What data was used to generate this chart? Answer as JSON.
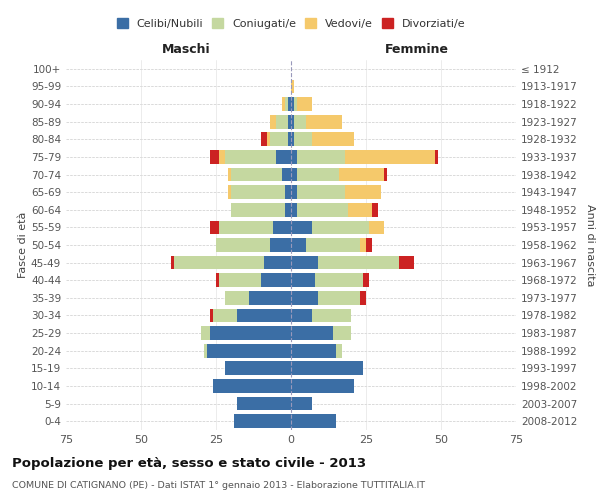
{
  "age_groups": [
    "0-4",
    "5-9",
    "10-14",
    "15-19",
    "20-24",
    "25-29",
    "30-34",
    "35-39",
    "40-44",
    "45-49",
    "50-54",
    "55-59",
    "60-64",
    "65-69",
    "70-74",
    "75-79",
    "80-84",
    "85-89",
    "90-94",
    "95-99",
    "100+"
  ],
  "birth_years": [
    "2008-2012",
    "2003-2007",
    "1998-2002",
    "1993-1997",
    "1988-1992",
    "1983-1987",
    "1978-1982",
    "1973-1977",
    "1968-1972",
    "1963-1967",
    "1958-1962",
    "1953-1957",
    "1948-1952",
    "1943-1947",
    "1938-1942",
    "1933-1937",
    "1928-1932",
    "1923-1927",
    "1918-1922",
    "1913-1917",
    "≤ 1912"
  ],
  "maschi": {
    "celibi": [
      19,
      18,
      26,
      22,
      28,
      27,
      18,
      14,
      10,
      9,
      7,
      6,
      2,
      2,
      3,
      5,
      1,
      1,
      1,
      0,
      0
    ],
    "coniugati": [
      0,
      0,
      0,
      0,
      1,
      3,
      8,
      8,
      14,
      30,
      18,
      18,
      18,
      18,
      17,
      17,
      6,
      4,
      1,
      0,
      0
    ],
    "vedovi": [
      0,
      0,
      0,
      0,
      0,
      0,
      0,
      0,
      0,
      0,
      0,
      0,
      0,
      1,
      1,
      2,
      1,
      2,
      1,
      0,
      0
    ],
    "divorziati": [
      0,
      0,
      0,
      0,
      0,
      0,
      1,
      0,
      1,
      1,
      0,
      3,
      0,
      0,
      0,
      3,
      2,
      0,
      0,
      0,
      0
    ]
  },
  "femmine": {
    "nubili": [
      15,
      7,
      21,
      24,
      15,
      14,
      7,
      9,
      8,
      9,
      5,
      7,
      2,
      2,
      2,
      2,
      1,
      1,
      1,
      0,
      0
    ],
    "coniugate": [
      0,
      0,
      0,
      0,
      2,
      6,
      13,
      14,
      16,
      27,
      18,
      19,
      17,
      16,
      14,
      16,
      6,
      4,
      1,
      0,
      0
    ],
    "vedove": [
      0,
      0,
      0,
      0,
      0,
      0,
      0,
      0,
      0,
      0,
      2,
      5,
      8,
      12,
      15,
      30,
      14,
      12,
      5,
      1,
      0
    ],
    "divorziate": [
      0,
      0,
      0,
      0,
      0,
      0,
      0,
      2,
      2,
      5,
      2,
      0,
      2,
      0,
      1,
      1,
      0,
      0,
      0,
      0,
      0
    ]
  },
  "colors": {
    "celibi": "#3B6EA5",
    "coniugati": "#C5D8A0",
    "vedovi": "#F5C96B",
    "divorziati": "#CC2222"
  },
  "xlim": 75,
  "title": "Popolazione per età, sesso e stato civile - 2013",
  "subtitle": "COMUNE DI CATIGNANO (PE) - Dati ISTAT 1° gennaio 2013 - Elaborazione TUTTITALIA.IT",
  "ylabel_left": "Fasce di età",
  "ylabel_right": "Anni di nascita",
  "xlabel_maschi": "Maschi",
  "xlabel_femmine": "Femmine",
  "legend_labels": [
    "Celibi/Nubili",
    "Coniugati/e",
    "Vedovi/e",
    "Divorziati/e"
  ]
}
